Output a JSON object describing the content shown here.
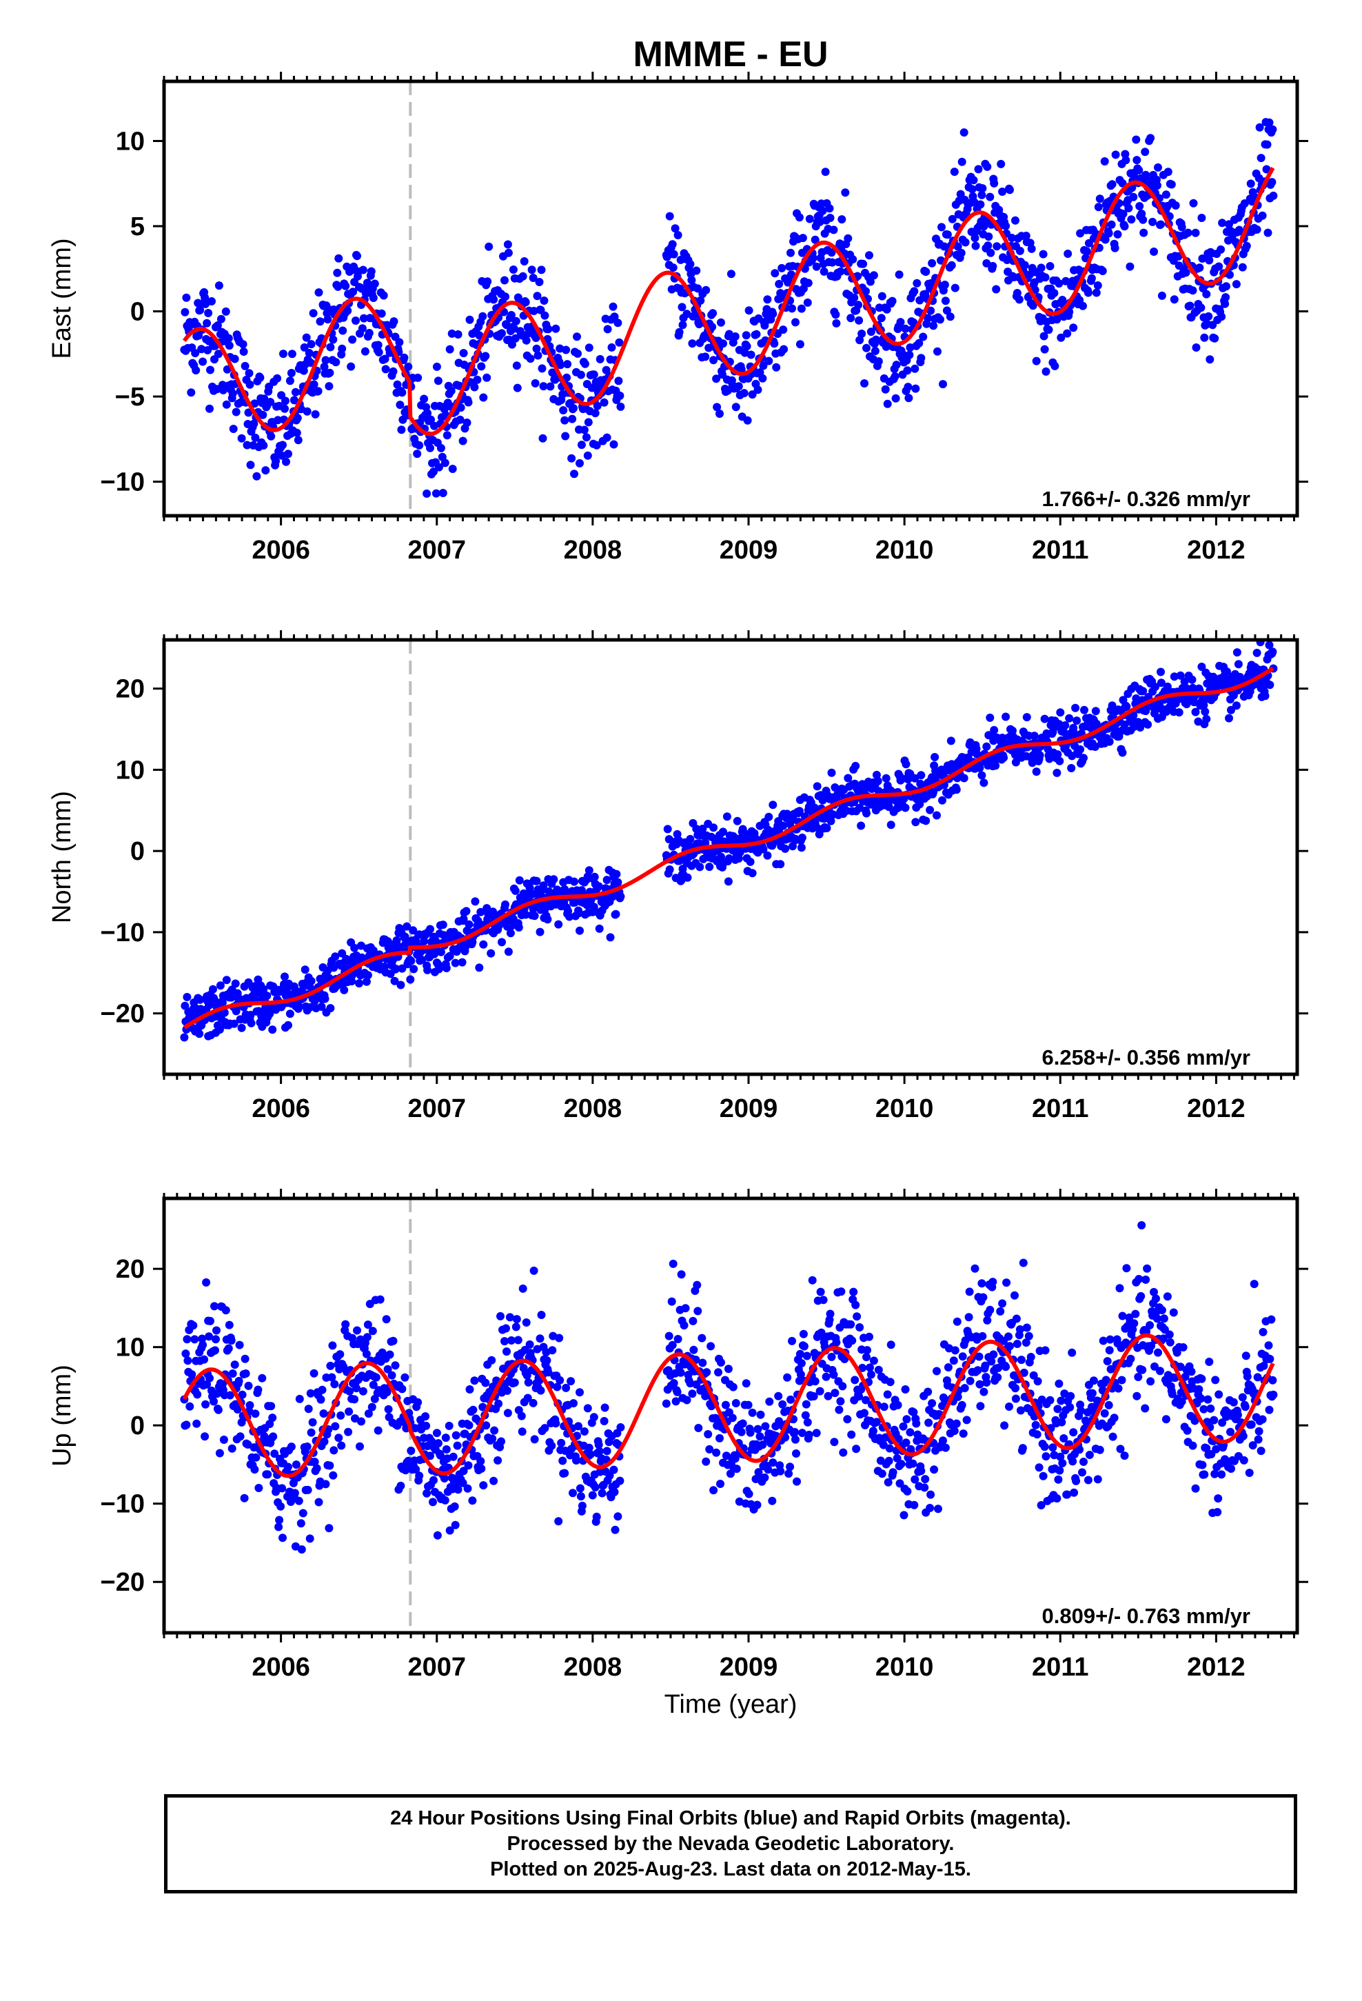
{
  "title": "MMME - EU",
  "xlabel": "Time (year)",
  "colors": {
    "final_orbits": "#0000ff",
    "model": "#ff0000",
    "event_line": "#bdbdbd",
    "frame": "#000000"
  },
  "footer": {
    "line1": "24 Hour Positions Using Final Orbits (blue) and Rapid Orbits (magenta).",
    "line2": "Processed by the Nevada Geodetic Laboratory.",
    "line3": "Plotted on 2025-Aug-23. Last data on 2012-May-15."
  },
  "chart_data": [
    {
      "type": "scatter",
      "name": "east",
      "ylabel": "East (mm)",
      "rate_label": "1.766+/- 0.326 mm/yr",
      "xlim": [
        2005.25,
        2012.52
      ],
      "ylim": [
        -12,
        13.5
      ],
      "xticks": [
        2006,
        2007,
        2008,
        2009,
        2010,
        2011,
        2012
      ],
      "yticks": [
        -10,
        -5,
        0,
        5,
        10
      ],
      "event_line_x": 2006.83,
      "data_start": 2005.38,
      "data_end": 2012.37,
      "gap": [
        2008.18,
        2008.47
      ],
      "model": {
        "intercept_at_2005_38": -4.6,
        "rate": 1.766,
        "annual_amplitude": 3.4,
        "annual_peak": 2005.47,
        "offset_after_event": -2.0,
        "event": 2006.83
      },
      "scatter_sigma": 1.7,
      "grid": false,
      "legend": "none"
    },
    {
      "type": "scatter",
      "name": "north",
      "ylabel": "North (mm)",
      "rate_label": "6.258+/- 0.356 mm/yr",
      "xlim": [
        2005.25,
        2012.52
      ],
      "ylim": [
        -27.5,
        26
      ],
      "xticks": [
        2006,
        2007,
        2008,
        2009,
        2010,
        2011,
        2012
      ],
      "yticks": [
        -20,
        -10,
        0,
        10,
        20
      ],
      "event_line_x": 2006.83,
      "data_start": 2005.38,
      "data_end": 2012.37,
      "gap": [
        2008.18,
        2008.47
      ],
      "model": {
        "intercept_at_2005_38": -21.8,
        "rate": 6.258,
        "annual_amplitude": 0.9,
        "annual_peak": 2005.62,
        "offset_after_event": 0.6,
        "event": 2006.83
      },
      "scatter_sigma": 1.5,
      "grid": false,
      "legend": "none"
    },
    {
      "type": "scatter",
      "name": "up",
      "ylabel": "Up (mm)",
      "rate_label": "0.809+/- 0.763 mm/yr",
      "xlim": [
        2005.25,
        2012.52
      ],
      "ylim": [
        -26.5,
        29
      ],
      "xticks": [
        2006,
        2007,
        2008,
        2009,
        2010,
        2011,
        2012
      ],
      "yticks": [
        -20,
        -10,
        0,
        10,
        20
      ],
      "event_line_x": 2006.83,
      "data_start": 2005.38,
      "data_end": 2012.37,
      "gap": [
        2008.18,
        2008.47
      ],
      "model": {
        "intercept_at_2005_38": 0.0,
        "rate": 0.809,
        "annual_amplitude": 7.0,
        "annual_peak": 2005.55,
        "offset_after_event": -0.5,
        "event": 2006.83
      },
      "scatter_sigma": 4.3,
      "grid": false,
      "legend": "none"
    }
  ]
}
